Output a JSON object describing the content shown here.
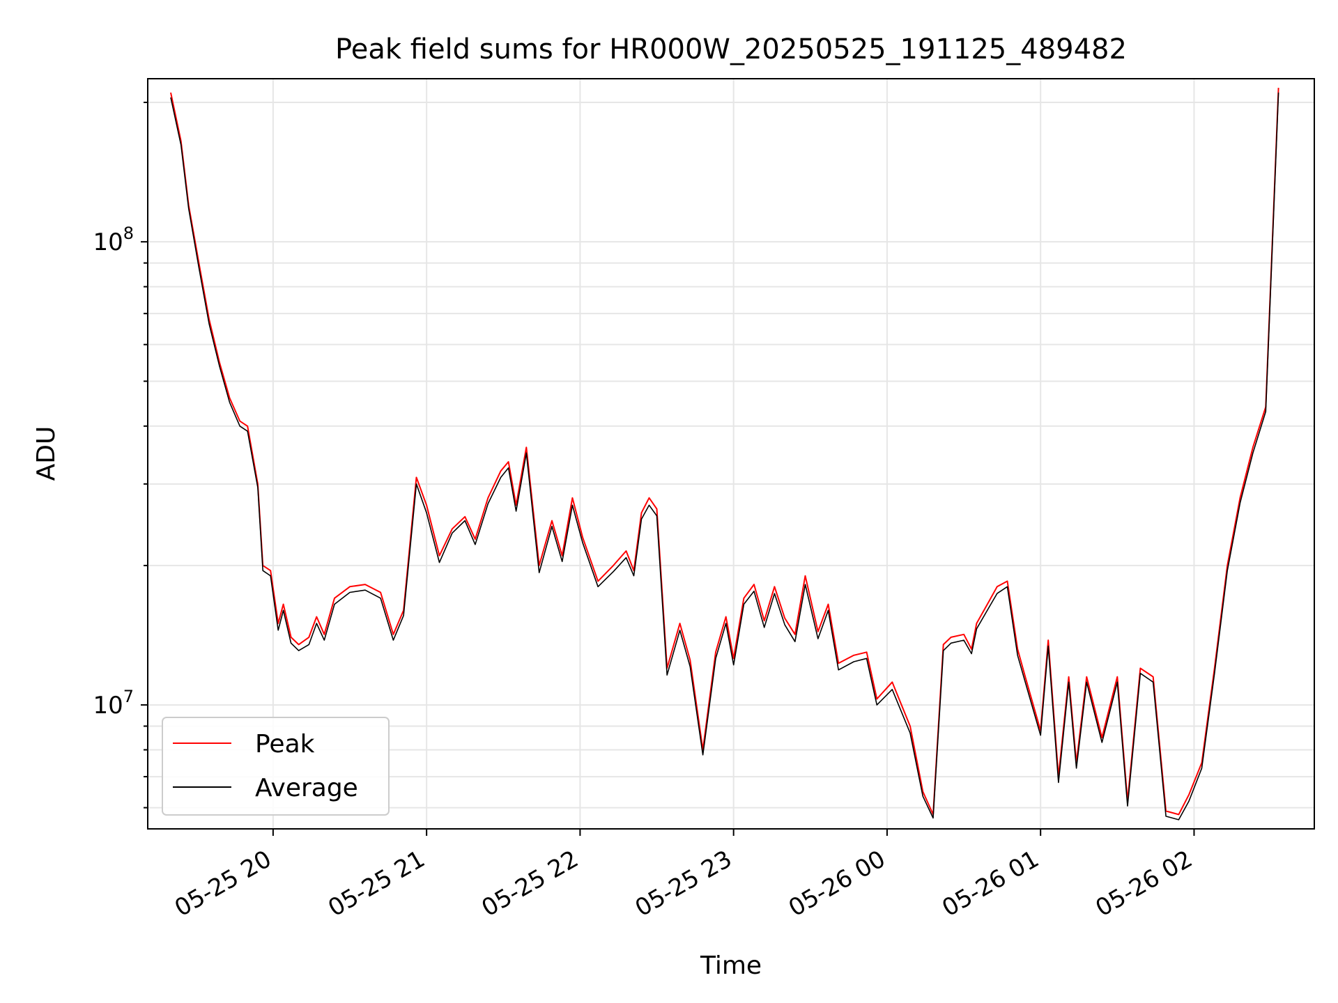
{
  "chart_data": {
    "type": "line",
    "title": "Peak field sums for HR000W_20250525_191125_489482",
    "xlabel": "Time",
    "ylabel": "ADU",
    "y_scale": "log",
    "ylim": [
      5400000,
      225000000
    ],
    "xlim": [
      "2025-05-25 19:11",
      "2025-05-26 02:47"
    ],
    "grid": true,
    "legend_position": "lower-left",
    "x_ticks": [
      "2025-05-25 20:00",
      "2025-05-25 21:00",
      "2025-05-25 22:00",
      "2025-05-25 23:00",
      "2025-05-26 00:00",
      "2025-05-26 01:00",
      "2025-05-26 02:00"
    ],
    "x_tick_labels": [
      "05-25 20",
      "05-25 21",
      "05-25 22",
      "05-25 23",
      "05-26 00",
      "05-26 01",
      "05-26 02"
    ],
    "y_major_ticks": [
      10000000,
      100000000
    ],
    "y_tick_labels": [
      {
        "base": "10",
        "exp": "7"
      },
      {
        "base": "10",
        "exp": "8"
      }
    ],
    "colors": {
      "peak": "#ff0000",
      "average": "#000000",
      "grid": "#e6e6e6"
    },
    "x": [
      "2025-05-25 19:20",
      "2025-05-25 19:24",
      "2025-05-25 19:27",
      "2025-05-25 19:31",
      "2025-05-25 19:35",
      "2025-05-25 19:39",
      "2025-05-25 19:43",
      "2025-05-25 19:47",
      "2025-05-25 19:50",
      "2025-05-25 19:54",
      "2025-05-25 19:56",
      "2025-05-25 19:59",
      "2025-05-25 20:02",
      "2025-05-25 20:04",
      "2025-05-25 20:07",
      "2025-05-25 20:10",
      "2025-05-25 20:14",
      "2025-05-25 20:17",
      "2025-05-25 20:20",
      "2025-05-25 20:24",
      "2025-05-25 20:30",
      "2025-05-25 20:36",
      "2025-05-25 20:42",
      "2025-05-25 20:47",
      "2025-05-25 20:51",
      "2025-05-25 20:56",
      "2025-05-25 21:00",
      "2025-05-25 21:05",
      "2025-05-25 21:10",
      "2025-05-25 21:15",
      "2025-05-25 21:19",
      "2025-05-25 21:24",
      "2025-05-25 21:29",
      "2025-05-25 21:32",
      "2025-05-25 21:35",
      "2025-05-25 21:39",
      "2025-05-25 21:44",
      "2025-05-25 21:49",
      "2025-05-25 21:53",
      "2025-05-25 21:57",
      "2025-05-25 22:01",
      "2025-05-25 22:07",
      "2025-05-25 22:13",
      "2025-05-25 22:18",
      "2025-05-25 22:21",
      "2025-05-25 22:24",
      "2025-05-25 22:27",
      "2025-05-25 22:30",
      "2025-05-25 22:34",
      "2025-05-25 22:39",
      "2025-05-25 22:43",
      "2025-05-25 22:48",
      "2025-05-25 22:53",
      "2025-05-25 22:57",
      "2025-05-25 23:00",
      "2025-05-25 23:04",
      "2025-05-25 23:08",
      "2025-05-25 23:12",
      "2025-05-25 23:16",
      "2025-05-25 23:20",
      "2025-05-25 23:24",
      "2025-05-25 23:28",
      "2025-05-25 23:33",
      "2025-05-25 23:37",
      "2025-05-25 23:41",
      "2025-05-25 23:47",
      "2025-05-25 23:52",
      "2025-05-25 23:56",
      "2025-05-26 00:02",
      "2025-05-26 00:09",
      "2025-05-26 00:14",
      "2025-05-26 00:18",
      "2025-05-26 00:22",
      "2025-05-26 00:25",
      "2025-05-26 00:30",
      "2025-05-26 00:33",
      "2025-05-26 00:35",
      "2025-05-26 00:40",
      "2025-05-26 00:43",
      "2025-05-26 00:47",
      "2025-05-26 00:51",
      "2025-05-26 00:54",
      "2025-05-26 01:00",
      "2025-05-26 01:03",
      "2025-05-26 01:07",
      "2025-05-26 01:11",
      "2025-05-26 01:14",
      "2025-05-26 01:18",
      "2025-05-26 01:24",
      "2025-05-26 01:30",
      "2025-05-26 01:34",
      "2025-05-26 01:39",
      "2025-05-26 01:44",
      "2025-05-26 01:49",
      "2025-05-26 01:54",
      "2025-05-26 01:58",
      "2025-05-26 02:03",
      "2025-05-26 02:08",
      "2025-05-26 02:13",
      "2025-05-26 02:18",
      "2025-05-26 02:23",
      "2025-05-26 02:28",
      "2025-05-26 02:33"
    ],
    "series": [
      {
        "name": "Peak",
        "values": [
          210000000,
          165000000,
          120000000,
          90000000,
          68000000,
          55000000,
          46000000,
          41000000,
          40000000,
          30000000,
          20000000,
          19500000,
          15000000,
          16500000,
          14000000,
          13500000,
          14000000,
          15500000,
          14200000,
          17000000,
          18000000,
          18200000,
          17500000,
          14200000,
          16000000,
          31000000,
          27000000,
          21000000,
          24000000,
          25500000,
          22800000,
          28000000,
          32000000,
          33500000,
          27000000,
          36000000,
          20000000,
          25000000,
          21000000,
          28000000,
          23000000,
          18500000,
          20000000,
          21500000,
          19500000,
          26000000,
          28000000,
          26500000,
          12000000,
          15000000,
          12500000,
          8000000,
          13000000,
          15500000,
          12600000,
          17000000,
          18200000,
          15200000,
          18000000,
          15400000,
          14200000,
          19000000,
          14400000,
          16500000,
          12300000,
          12800000,
          13000000,
          10300000,
          11200000,
          9000000,
          6500000,
          5800000,
          13500000,
          14000000,
          14200000,
          13200000,
          15000000,
          16800000,
          18000000,
          18500000,
          13200000,
          11500000,
          8800000,
          13800000,
          7000000,
          11500000,
          7500000,
          11500000,
          8500000,
          11500000,
          6200000,
          12000000,
          11500000,
          5900000,
          5800000,
          6400000,
          7500000,
          12000000,
          20000000,
          28000000,
          36000000,
          44000000,
          215000000
        ],
        "color": "#ff0000"
      },
      {
        "name": "Average",
        "values": [
          205000000,
          162000000,
          118000000,
          88000000,
          66500000,
          54000000,
          45000000,
          40000000,
          39000000,
          29500000,
          19500000,
          19000000,
          14500000,
          16000000,
          13600000,
          13100000,
          13500000,
          15000000,
          13800000,
          16500000,
          17500000,
          17700000,
          17000000,
          13800000,
          15600000,
          30000000,
          26000000,
          20300000,
          23500000,
          25000000,
          22200000,
          27200000,
          31000000,
          32500000,
          26200000,
          35000000,
          19300000,
          24300000,
          20400000,
          27000000,
          22400000,
          18000000,
          19400000,
          20800000,
          19000000,
          25200000,
          27000000,
          25600000,
          11600000,
          14500000,
          12100000,
          7800000,
          12600000,
          15000000,
          12200000,
          16500000,
          17600000,
          14700000,
          17400000,
          14900000,
          13700000,
          18200000,
          13900000,
          16000000,
          11900000,
          12400000,
          12600000,
          10000000,
          10800000,
          8700000,
          6350000,
          5700000,
          13100000,
          13600000,
          13800000,
          12900000,
          14600000,
          16300000,
          17400000,
          18000000,
          12800000,
          11200000,
          8600000,
          13400000,
          6800000,
          11200000,
          7300000,
          11200000,
          8300000,
          11200000,
          6050000,
          11700000,
          11200000,
          5750000,
          5650000,
          6200000,
          7300000,
          11700000,
          19500000,
          27300000,
          35000000,
          43000000,
          210000000
        ],
        "color": "#000000"
      }
    ]
  }
}
